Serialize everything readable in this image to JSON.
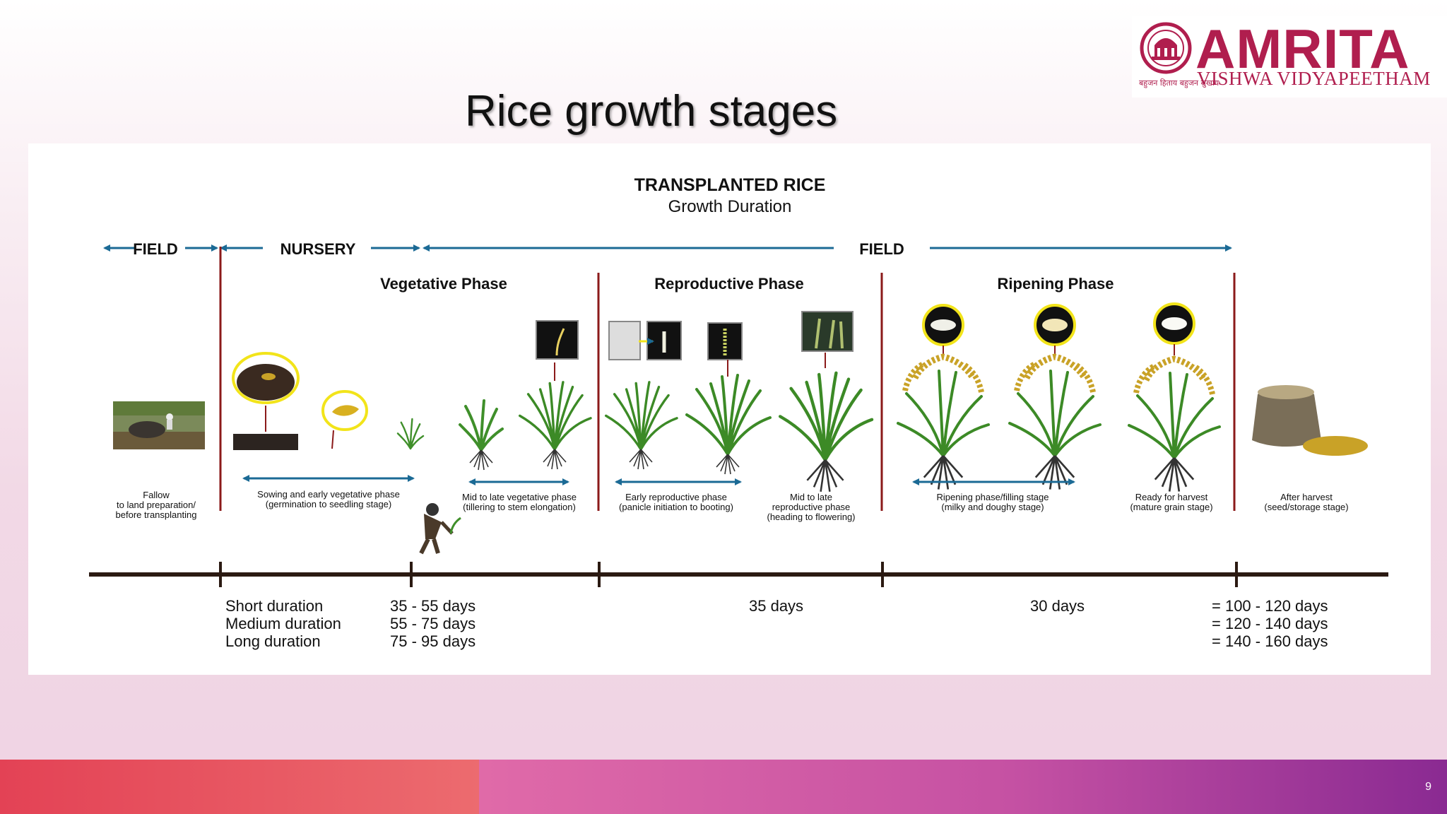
{
  "slide": {
    "title": "Rice growth stages",
    "page_number": "9"
  },
  "logo": {
    "name": "AMRITA",
    "subtitle": "VISHWA VIDYAPEETHAM",
    "tagline": "बहुजन हिताय बहुजन सुखाय"
  },
  "diagram": {
    "title": "TRANSPLANTED RICE",
    "subtitle": "Growth Duration",
    "locations": {
      "field_left": "FIELD",
      "nursery": "NURSERY",
      "field_right": "FIELD"
    },
    "phases": {
      "vegetative": "Vegetative Phase",
      "reproductive": "Reproductive Phase",
      "ripening": "Ripening Phase"
    },
    "stages": {
      "fallow": [
        "Fallow",
        "to land preparation/",
        "before transplanting"
      ],
      "sowing": [
        "Sowing and early vegetative phase",
        "(germination to seedling stage)"
      ],
      "mid_late_veg": [
        "Mid to late vegetative phase",
        "(tillering to stem elongation)"
      ],
      "early_repro": [
        "Early reproductive phase",
        "(panicle initiation to booting)"
      ],
      "mid_late_repro": [
        "Mid to late",
        "reproductive phase",
        "(heading to flowering)"
      ],
      "ripening": [
        "Ripening phase/filling stage",
        "(milky and doughy stage)"
      ],
      "ready": [
        "Ready for harvest",
        "(mature grain stage)"
      ],
      "after": [
        "After harvest",
        "(seed/storage stage)"
      ]
    },
    "durations": {
      "types": [
        "Short duration",
        "Medium duration",
        "Long duration"
      ],
      "vegetative_days": [
        "35 - 55 days",
        "55 - 75 days",
        "75 - 95 days"
      ],
      "reproductive_days": "35 days",
      "ripening_days": "30 days",
      "totals": [
        "= 100 - 120 days",
        "= 120 - 140 days",
        "= 140 - 160 days"
      ]
    }
  },
  "colors": {
    "arrow": "#1b6a95",
    "divider": "#8b1a1a",
    "timeline": "#2b1a12",
    "brand": "#b01e4e"
  }
}
